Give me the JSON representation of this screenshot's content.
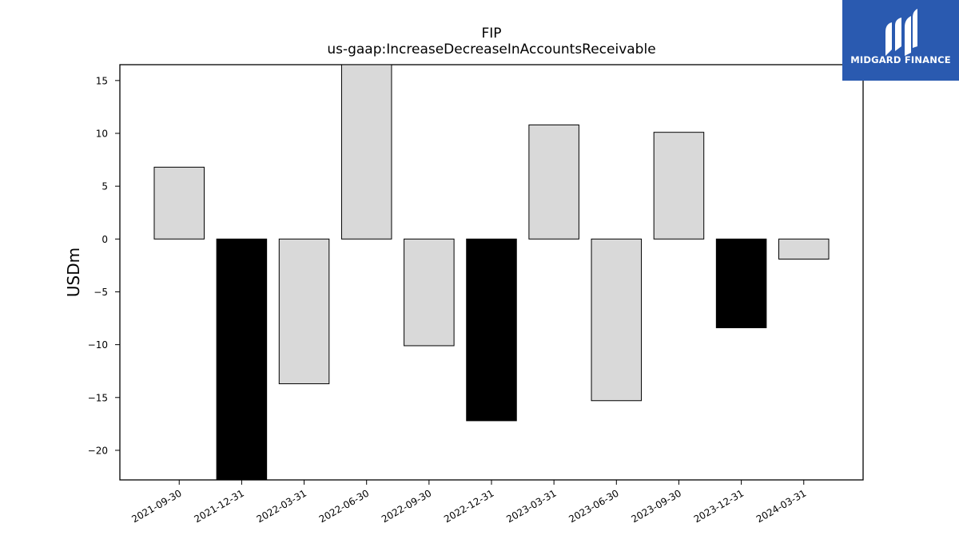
{
  "chart_data": {
    "type": "bar",
    "title": "FIP",
    "subtitle": "us-gaap:IncreaseDecreaseInAccountsReceivable",
    "xlabel": "",
    "ylabel": "USDm",
    "ylim": [
      -22.8,
      16.5
    ],
    "yticks": [
      15,
      10,
      5,
      0,
      -5,
      -10,
      -15,
      -20
    ],
    "ytick_labels": [
      "15",
      "10",
      "5",
      "0",
      "−5",
      "−10",
      "−15",
      "−20"
    ],
    "grid": false,
    "categories": [
      "2021-09-30",
      "2021-12-31",
      "2022-03-31",
      "2022-06-30",
      "2022-09-30",
      "2022-12-31",
      "2023-03-31",
      "2023-06-30",
      "2023-09-30",
      "2023-12-31",
      "2024-03-31"
    ],
    "values": [
      6.8,
      -22.8,
      -13.7,
      16.5,
      -10.1,
      -17.2,
      10.8,
      -15.3,
      10.1,
      -8.4,
      -1.9
    ],
    "highlight": [
      false,
      true,
      false,
      false,
      false,
      true,
      false,
      false,
      false,
      true,
      false
    ],
    "colors": {
      "default": "#d9d9d9",
      "highlight": "#000000",
      "edge": "#000000"
    }
  },
  "logo": {
    "text": "MIDGARD FINANCE",
    "background": "#2a5ab0"
  }
}
